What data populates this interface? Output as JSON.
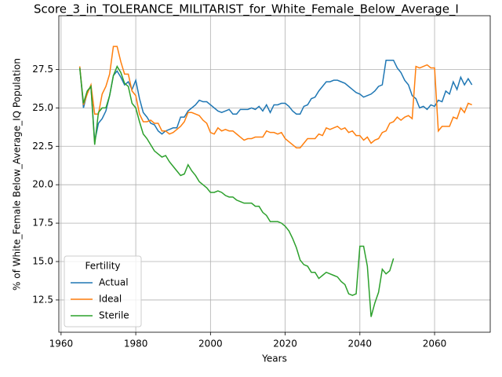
{
  "chart_data": {
    "type": "line",
    "title": "Score_3_in_TOLERANCE_MILITARIST_for_White_Female_Below_Average_I",
    "xlabel": "Years",
    "ylabel": "% of White_Female Below_Average_IQ Population",
    "x": [
      1965,
      1966,
      1967,
      1968,
      1969,
      1970,
      1971,
      1972,
      1973,
      1974,
      1975,
      1976,
      1977,
      1978,
      1979,
      1980,
      1981,
      1982,
      1983,
      1984,
      1985,
      1986,
      1987,
      1988,
      1989,
      1990,
      1991,
      1992,
      1993,
      1994,
      1995,
      1996,
      1997,
      1998,
      1999,
      2000,
      2001,
      2002,
      2003,
      2004,
      2005,
      2006,
      2007,
      2008,
      2009,
      2010,
      2011,
      2012,
      2013,
      2014,
      2015,
      2016,
      2017,
      2018,
      2019,
      2020,
      2021,
      2022,
      2023,
      2024,
      2025,
      2026,
      2027,
      2028,
      2029,
      2030,
      2031,
      2032,
      2033,
      2034,
      2035,
      2036,
      2037,
      2038,
      2039,
      2040,
      2041,
      2042,
      2043,
      2044,
      2045,
      2046,
      2047,
      2048,
      2049,
      2050,
      2051,
      2052,
      2053,
      2054,
      2055,
      2056,
      2057,
      2058,
      2059,
      2060,
      2061,
      2062,
      2063,
      2064,
      2065,
      2066,
      2067,
      2068,
      2069,
      2070
    ],
    "series": [
      {
        "name": "Actual",
        "color": "#1f77b4",
        "values": [
          27.7,
          25.0,
          26.0,
          26.4,
          22.8,
          24.0,
          24.3,
          24.8,
          25.8,
          27.1,
          27.4,
          27.0,
          26.5,
          26.7,
          26.2,
          26.8,
          25.6,
          24.7,
          24.4,
          24.0,
          23.9,
          23.5,
          23.3,
          23.5,
          23.6,
          23.7,
          23.7,
          24.4,
          24.4,
          24.8,
          25.0,
          25.2,
          25.5,
          25.4,
          25.4,
          25.2,
          25.0,
          24.8,
          24.7,
          24.8,
          24.9,
          24.6,
          24.6,
          24.9,
          24.9,
          24.9,
          25.0,
          24.9,
          25.1,
          24.8,
          25.2,
          24.7,
          25.2,
          25.2,
          25.3,
          25.3,
          25.1,
          24.8,
          24.6,
          24.6,
          25.1,
          25.2,
          25.6,
          25.7,
          26.1,
          26.4,
          26.7,
          26.7,
          26.8,
          26.8,
          26.7,
          26.6,
          26.4,
          26.2,
          26.0,
          25.9,
          25.7,
          25.8,
          25.9,
          26.1,
          26.4,
          26.5,
          28.1,
          28.1,
          28.1,
          27.6,
          27.3,
          26.8,
          26.5,
          25.8,
          25.6,
          25.0,
          25.1,
          24.9,
          25.2,
          25.1,
          25.5,
          25.4,
          26.1,
          25.9,
          26.7,
          26.2,
          27.0,
          26.5,
          26.9,
          26.5
        ]
      },
      {
        "name": "Ideal",
        "color": "#ff7f0e",
        "values": [
          27.7,
          25.2,
          25.9,
          26.5,
          24.6,
          24.6,
          25.9,
          26.4,
          27.2,
          29.0,
          29.0,
          28.0,
          27.2,
          27.2,
          26.1,
          25.8,
          24.6,
          24.1,
          24.1,
          24.2,
          24.0,
          24.0,
          23.5,
          23.5,
          23.3,
          23.4,
          23.6,
          23.8,
          24.1,
          24.7,
          24.7,
          24.6,
          24.5,
          24.2,
          24.0,
          23.4,
          23.3,
          23.7,
          23.5,
          23.6,
          23.5,
          23.5,
          23.3,
          23.1,
          22.9,
          23.0,
          23.0,
          23.1,
          23.1,
          23.1,
          23.5,
          23.4,
          23.4,
          23.3,
          23.4,
          23.0,
          22.8,
          22.6,
          22.4,
          22.4,
          22.7,
          23.0,
          23.0,
          23.0,
          23.3,
          23.2,
          23.7,
          23.6,
          23.7,
          23.8,
          23.6,
          23.7,
          23.4,
          23.5,
          23.2,
          23.2,
          22.9,
          23.1,
          22.7,
          22.9,
          23.0,
          23.4,
          23.5,
          24.0,
          24.1,
          24.4,
          24.2,
          24.4,
          24.5,
          24.3,
          27.7,
          27.6,
          27.7,
          27.8,
          27.6,
          27.6,
          23.5,
          23.8,
          23.8,
          23.8,
          24.4,
          24.3,
          25.0,
          24.7,
          25.3,
          25.2
        ]
      },
      {
        "name": "Sterile",
        "color": "#2ca02c",
        "values": [
          27.6,
          25.3,
          26.1,
          26.4,
          22.6,
          24.7,
          25.0,
          25.0,
          25.8,
          27.1,
          27.7,
          27.3,
          26.6,
          26.4,
          25.3,
          25.0,
          24.1,
          23.3,
          23.0,
          22.6,
          22.2,
          22.0,
          21.8,
          21.9,
          21.5,
          21.2,
          20.9,
          20.6,
          20.7,
          21.3,
          20.9,
          20.6,
          20.2,
          20.0,
          19.8,
          19.5,
          19.5,
          19.6,
          19.5,
          19.3,
          19.2,
          19.2,
          19.0,
          18.9,
          18.8,
          18.8,
          18.8,
          18.6,
          18.6,
          18.2,
          18.0,
          17.6,
          17.6,
          17.6,
          17.5,
          17.3,
          17.0,
          16.5,
          15.9,
          15.1,
          14.8,
          14.7,
          14.3,
          14.3,
          13.9,
          14.1,
          14.3,
          14.2,
          14.1,
          14.0,
          13.7,
          13.5,
          12.9,
          12.8,
          12.9,
          16.0,
          16.0,
          14.7,
          11.4,
          12.3,
          13.0,
          14.5,
          14.2,
          14.4,
          15.2,
          null,
          null,
          null,
          null,
          null,
          null,
          null,
          null,
          null,
          null,
          null,
          null,
          null,
          null,
          null,
          null,
          null,
          null,
          null,
          null,
          null
        ]
      }
    ],
    "xlim": [
      1959.4,
      2074.9
    ],
    "xticks": [
      1960,
      1980,
      2000,
      2020,
      2040,
      2060
    ],
    "ylim": [
      10.4,
      31.0
    ],
    "yticks": [
      12.5,
      {
        "value": 15,
        "label": "15.0"
      },
      17.5,
      {
        "value": 20,
        "label": "20.0"
      },
      22.5,
      {
        "value": 25,
        "label": "25.0"
      },
      27.5
    ],
    "grid": true,
    "legend_title": "Fertility",
    "legend_loc": "lower left"
  }
}
